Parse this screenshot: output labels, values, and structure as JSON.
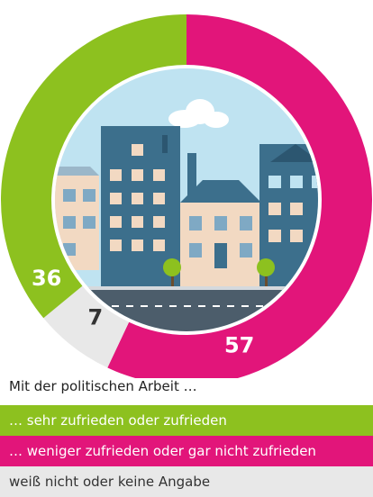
{
  "chart_data": {
    "type": "pie",
    "subtitle": "Mit der politischen Arbeit …",
    "slices": [
      {
        "label": "… sehr zufrieden oder zufrieden",
        "value": 36,
        "color": "#8dc11f",
        "text_color": "#ffffff"
      },
      {
        "label": "… weniger zufrieden oder gar nicht zufrieden",
        "value": 57,
        "color": "#e2157a",
        "text_color": "#ffffff"
      },
      {
        "label": "weiß nicht oder keine Angabe",
        "value": 7,
        "color": "#e8e8e8",
        "text_color": "#333333"
      }
    ],
    "order": [
      "pink",
      "grey",
      "green"
    ]
  }
}
